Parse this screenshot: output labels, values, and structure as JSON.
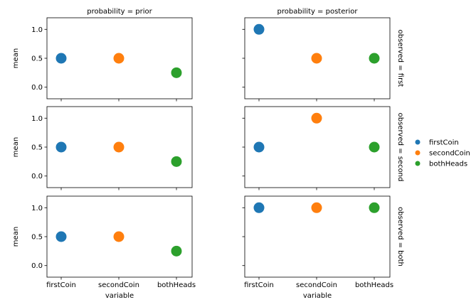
{
  "chart_data": {
    "type": "scatter",
    "col_facet_var": "probability",
    "row_facet_var": "observed",
    "col_facet_values": [
      "prior",
      "posterior"
    ],
    "row_facet_values": [
      "first",
      "second",
      "both"
    ],
    "xlabel": "variable",
    "ylabel": "mean",
    "categories": [
      "firstCoin",
      "secondCoin",
      "bothHeads"
    ],
    "ylim": [
      -0.2,
      1.2
    ],
    "yticks": [
      0.0,
      0.5,
      1.0
    ],
    "ytick_labels": [
      "0.0",
      "0.5",
      "1.0"
    ],
    "grid": false,
    "legend_position": "right",
    "series": [
      {
        "name": "firstCoin",
        "color": "#1f77b4"
      },
      {
        "name": "secondCoin",
        "color": "#ff7f0e"
      },
      {
        "name": "bothHeads",
        "color": "#2ca02c"
      }
    ],
    "facets": [
      {
        "row": "first",
        "col": "prior",
        "values": [
          0.5,
          0.5,
          0.25
        ]
      },
      {
        "row": "first",
        "col": "posterior",
        "values": [
          1.0,
          0.5,
          0.5
        ]
      },
      {
        "row": "second",
        "col": "prior",
        "values": [
          0.5,
          0.5,
          0.25
        ]
      },
      {
        "row": "second",
        "col": "posterior",
        "values": [
          0.5,
          1.0,
          0.5
        ]
      },
      {
        "row": "both",
        "col": "prior",
        "values": [
          0.5,
          0.5,
          0.25
        ]
      },
      {
        "row": "both",
        "col": "posterior",
        "values": [
          1.0,
          1.0,
          1.0
        ]
      }
    ]
  }
}
